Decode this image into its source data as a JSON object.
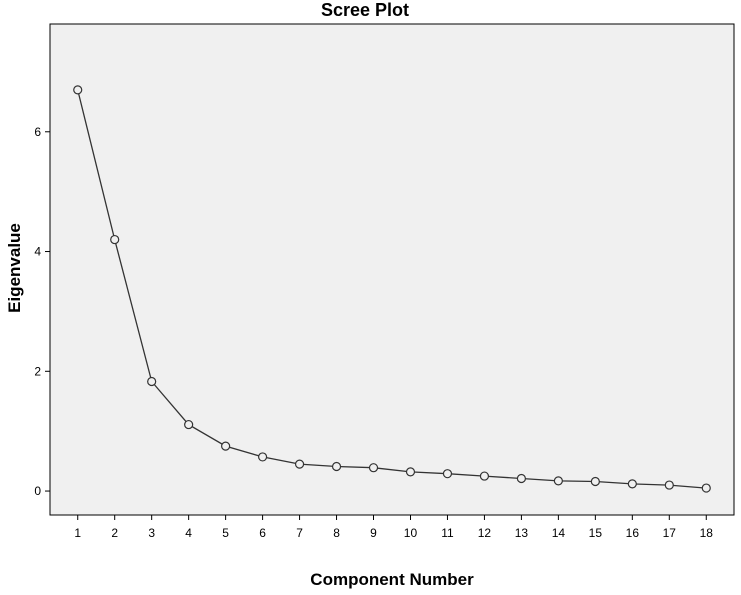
{
  "chart_data": {
    "type": "line",
    "title": "Scree Plot",
    "xlabel": "Component Number",
    "ylabel": "Eigenvalue",
    "x": [
      1,
      2,
      3,
      4,
      5,
      6,
      7,
      8,
      9,
      10,
      11,
      12,
      13,
      14,
      15,
      16,
      17,
      18
    ],
    "series": [
      {
        "values": [
          6.7,
          4.2,
          1.83,
          1.11,
          0.75,
          0.57,
          0.45,
          0.41,
          0.39,
          0.32,
          0.29,
          0.25,
          0.21,
          0.17,
          0.16,
          0.12,
          0.1,
          0.05
        ]
      }
    ],
    "x_ticks": [
      "1",
      "2",
      "3",
      "4",
      "5",
      "6",
      "7",
      "8",
      "9",
      "10",
      "11",
      "12",
      "13",
      "14",
      "15",
      "16",
      "17",
      "18"
    ],
    "y_ticks": [
      "0",
      "2",
      "4",
      "6"
    ],
    "xlim": [
      0.25,
      18.75
    ],
    "ylim": [
      -0.4,
      7.8
    ],
    "grid": false,
    "legend": "none",
    "colors": {
      "plot_background": "#f0f0f0",
      "line": "#333333",
      "marker_stroke": "#333333",
      "marker_fill": "#f0f0f0",
      "axis": "#000000"
    }
  }
}
